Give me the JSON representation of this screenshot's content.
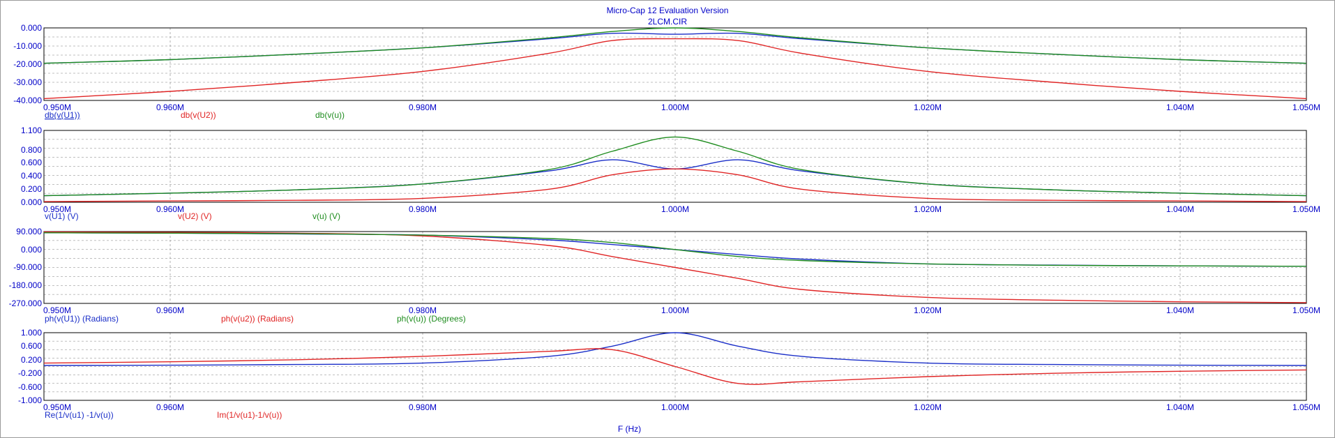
{
  "title": "Micro-Cap 12 Evaluation Version",
  "subtitle": "2LCM.CIR",
  "xlabel": "F (Hz)",
  "colors": {
    "axis": "#0000c8",
    "grid": "#808080",
    "blue": "#1a2ec8",
    "red": "#e02424",
    "green": "#1e8c1e"
  },
  "chart_data": [
    {
      "type": "line",
      "xlim": [
        0.95,
        1.05
      ],
      "xticks": [
        "0.950M",
        "0.960M",
        "0.980M",
        "1.000M",
        "1.020M",
        "1.040M",
        "1.050M"
      ],
      "ylim": [
        -40,
        0
      ],
      "yticks": [
        "0.000",
        "-10.000",
        "-20.000",
        "-30.000",
        "-40.000"
      ],
      "series": [
        {
          "name": "db(v(U1))",
          "color": "blue",
          "x": [
            0.95,
            0.96,
            0.97,
            0.98,
            0.99,
            0.995,
            1.0,
            1.005,
            1.01,
            1.02,
            1.03,
            1.04,
            1.05
          ],
          "y": [
            -19.5,
            -17.5,
            -14.5,
            -11,
            -6,
            -3,
            -3.5,
            -3,
            -6,
            -11,
            -14.5,
            -17.5,
            -19.5
          ]
        },
        {
          "name": "db(v(U2))",
          "color": "red",
          "x": [
            0.95,
            0.96,
            0.97,
            0.98,
            0.99,
            0.995,
            1.0,
            1.005,
            1.01,
            1.02,
            1.03,
            1.04,
            1.05
          ],
          "y": [
            -39,
            -35,
            -30,
            -24,
            -14,
            -7,
            -6,
            -7,
            -14,
            -24,
            -30,
            -35,
            -39
          ]
        },
        {
          "name": "db(v(u))",
          "color": "green",
          "x": [
            0.95,
            0.96,
            0.97,
            0.98,
            0.99,
            0.995,
            1.0,
            1.005,
            1.01,
            1.02,
            1.03,
            1.04,
            1.05
          ],
          "y": [
            -19.5,
            -17.5,
            -14.5,
            -11,
            -5.5,
            -2,
            0,
            -2,
            -5.5,
            -11,
            -14.5,
            -17.5,
            -19.5
          ]
        }
      ]
    },
    {
      "type": "line",
      "xlim": [
        0.95,
        1.05
      ],
      "xticks": [
        "0.950M",
        "0.960M",
        "0.980M",
        "1.000M",
        "1.020M",
        "1.040M",
        "1.050M"
      ],
      "ylim": [
        0,
        1.1
      ],
      "yticks": [
        "1.100",
        "0.800",
        "0.600",
        "0.400",
        "0.200",
        "0.000"
      ],
      "series": [
        {
          "name": "v(U1) (V)",
          "color": "blue",
          "x": [
            0.95,
            0.96,
            0.97,
            0.98,
            0.99,
            0.995,
            1.0,
            1.005,
            1.01,
            1.02,
            1.03,
            1.04,
            1.05
          ],
          "y": [
            0.1,
            0.14,
            0.19,
            0.28,
            0.48,
            0.65,
            0.51,
            0.65,
            0.48,
            0.28,
            0.19,
            0.14,
            0.1
          ]
        },
        {
          "name": "v(U2) (V)",
          "color": "red",
          "x": [
            0.95,
            0.96,
            0.97,
            0.98,
            0.99,
            0.995,
            1.0,
            1.005,
            1.01,
            1.02,
            1.03,
            1.04,
            1.05
          ],
          "y": [
            0.01,
            0.02,
            0.03,
            0.06,
            0.2,
            0.42,
            0.51,
            0.42,
            0.2,
            0.06,
            0.03,
            0.02,
            0.01
          ]
        },
        {
          "name": "v(u) (V)",
          "color": "green",
          "x": [
            0.95,
            0.96,
            0.97,
            0.98,
            0.99,
            0.995,
            1.0,
            1.005,
            1.01,
            1.02,
            1.03,
            1.04,
            1.05
          ],
          "y": [
            0.1,
            0.14,
            0.19,
            0.28,
            0.5,
            0.78,
            1.0,
            0.78,
            0.5,
            0.28,
            0.19,
            0.14,
            0.1
          ]
        }
      ]
    },
    {
      "type": "line",
      "xlim": [
        0.95,
        1.05
      ],
      "xticks": [
        "0.950M",
        "0.960M",
        "0.980M",
        "1.000M",
        "1.020M",
        "1.040M",
        "1.050M"
      ],
      "ylim": [
        -270,
        90
      ],
      "yticks": [
        "90.000",
        "0.000",
        "-90.000",
        "-180.000",
        "-270.000"
      ],
      "series": [
        {
          "name": "ph(v(U1)) (Radians)",
          "color": "blue",
          "x": [
            0.95,
            0.96,
            0.97,
            0.98,
            0.99,
            0.995,
            1.0,
            1.005,
            1.01,
            1.02,
            1.03,
            1.04,
            1.05
          ],
          "y": [
            84,
            82,
            78,
            72,
            48,
            25,
            0,
            -25,
            -48,
            -72,
            -78,
            -82,
            -84
          ]
        },
        {
          "name": "ph(v(u2)) (Radians)",
          "color": "red",
          "x": [
            0.95,
            0.96,
            0.97,
            0.98,
            0.99,
            0.995,
            1.0,
            1.005,
            1.01,
            1.02,
            1.03,
            1.04,
            1.05
          ],
          "y": [
            88,
            86,
            82,
            68,
            20,
            -35,
            -90,
            -145,
            -200,
            -240,
            -254,
            -262,
            -266
          ]
        },
        {
          "name": "ph(v(u)) (Degrees)",
          "color": "green",
          "x": [
            0.95,
            0.96,
            0.97,
            0.98,
            0.99,
            0.995,
            1.0,
            1.005,
            1.01,
            1.02,
            1.03,
            1.04,
            1.05
          ],
          "y": [
            84,
            82,
            79,
            72,
            55,
            35,
            0,
            -35,
            -55,
            -72,
            -79,
            -82,
            -84
          ]
        }
      ]
    },
    {
      "type": "line",
      "xlim": [
        0.95,
        1.05
      ],
      "xticks": [
        "0.950M",
        "0.960M",
        "0.980M",
        "1.000M",
        "1.020M",
        "1.040M",
        "1.050M"
      ],
      "ylim": [
        -1,
        1
      ],
      "yticks": [
        "1.000",
        "0.600",
        "0.200",
        "-0.200",
        "-0.600",
        "-1.000"
      ],
      "series": [
        {
          "name": "Re(1/v(u1) -1/v(u))",
          "color": "blue",
          "x": [
            0.95,
            0.96,
            0.97,
            0.98,
            0.99,
            0.995,
            1.0,
            1.005,
            1.01,
            1.02,
            1.03,
            1.04,
            1.05
          ],
          "y": [
            0.03,
            0.04,
            0.06,
            0.1,
            0.3,
            0.6,
            1.0,
            0.6,
            0.3,
            0.1,
            0.06,
            0.04,
            0.03
          ]
        },
        {
          "name": "Im(1/v(u1)-1/v(u))",
          "color": "red",
          "x": [
            0.95,
            0.96,
            0.97,
            0.98,
            0.99,
            0.995,
            1.0,
            1.005,
            1.01,
            1.02,
            1.03,
            1.04,
            1.05
          ],
          "y": [
            0.1,
            0.14,
            0.2,
            0.3,
            0.45,
            0.5,
            0.0,
            -0.5,
            -0.45,
            -0.3,
            -0.2,
            -0.14,
            -0.1
          ]
        }
      ]
    }
  ]
}
